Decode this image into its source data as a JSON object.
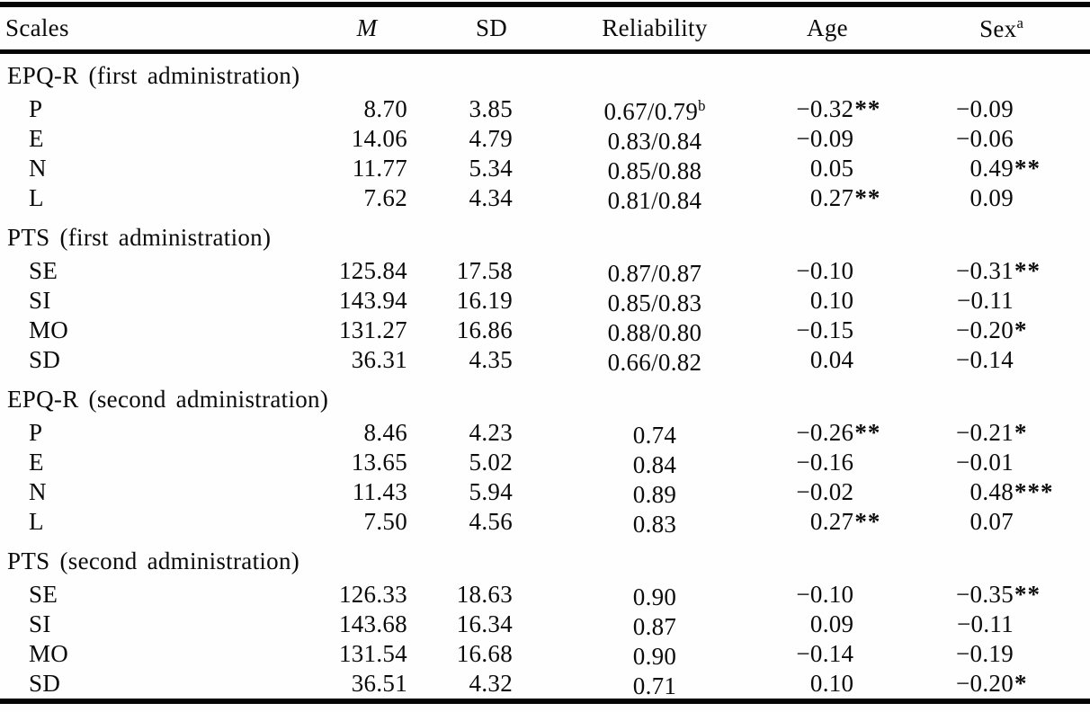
{
  "header": {
    "scales": "Scales",
    "m": "M",
    "sd": "SD",
    "reliability": "Reliability",
    "age": "Age",
    "sex": "Sex",
    "sex_sup": "a"
  },
  "sections": [
    {
      "label": "EPQ-R (first administration)",
      "rows": [
        {
          "scale": "P",
          "m": "8.70",
          "sd": "3.85",
          "rel": "0.67/0.79",
          "rel_sup": "b",
          "age": "−0.32",
          "age_stars": "**",
          "sex": "−0.09",
          "sex_stars": ""
        },
        {
          "scale": "E",
          "m": "14.06",
          "sd": "4.79",
          "rel": "0.83/0.84",
          "rel_sup": "",
          "age": "−0.09",
          "age_stars": "",
          "sex": "−0.06",
          "sex_stars": ""
        },
        {
          "scale": "N",
          "m": "11.77",
          "sd": "5.34",
          "rel": "0.85/0.88",
          "rel_sup": "",
          "age": "0.05",
          "age_stars": "",
          "sex": "0.49",
          "sex_stars": "**"
        },
        {
          "scale": "L",
          "m": "7.62",
          "sd": "4.34",
          "rel": "0.81/0.84",
          "rel_sup": "",
          "age": "0.27",
          "age_stars": "**",
          "sex": "0.09",
          "sex_stars": ""
        }
      ]
    },
    {
      "label": "PTS (first administration)",
      "rows": [
        {
          "scale": "SE",
          "m": "125.84",
          "sd": "17.58",
          "rel": "0.87/0.87",
          "rel_sup": "",
          "age": "−0.10",
          "age_stars": "",
          "sex": "−0.31",
          "sex_stars": "**"
        },
        {
          "scale": "SI",
          "m": "143.94",
          "sd": "16.19",
          "rel": "0.85/0.83",
          "rel_sup": "",
          "age": "0.10",
          "age_stars": "",
          "sex": "−0.11",
          "sex_stars": ""
        },
        {
          "scale": "MO",
          "m": "131.27",
          "sd": "16.86",
          "rel": "0.88/0.80",
          "rel_sup": "",
          "age": "−0.15",
          "age_stars": "",
          "sex": "−0.20",
          "sex_stars": "*"
        },
        {
          "scale": "SD",
          "m": "36.31",
          "sd": "4.35",
          "rel": "0.66/0.82",
          "rel_sup": "",
          "age": "0.04",
          "age_stars": "",
          "sex": "−0.14",
          "sex_stars": ""
        }
      ]
    },
    {
      "label": "EPQ-R (second administration)",
      "rows": [
        {
          "scale": "P",
          "m": "8.46",
          "sd": "4.23",
          "rel": "0.74",
          "rel_sup": "",
          "age": "−0.26",
          "age_stars": "**",
          "sex": "−0.21",
          "sex_stars": "*"
        },
        {
          "scale": "E",
          "m": "13.65",
          "sd": "5.02",
          "rel": "0.84",
          "rel_sup": "",
          "age": "−0.16",
          "age_stars": "",
          "sex": "−0.01",
          "sex_stars": ""
        },
        {
          "scale": "N",
          "m": "11.43",
          "sd": "5.94",
          "rel": "0.89",
          "rel_sup": "",
          "age": "−0.02",
          "age_stars": "",
          "sex": "0.48",
          "sex_stars": "***"
        },
        {
          "scale": "L",
          "m": "7.50",
          "sd": "4.56",
          "rel": "0.83",
          "rel_sup": "",
          "age": "0.27",
          "age_stars": "**",
          "sex": "0.07",
          "sex_stars": ""
        }
      ]
    },
    {
      "label": "PTS (second administration)",
      "rows": [
        {
          "scale": "SE",
          "m": "126.33",
          "sd": "18.63",
          "rel": "0.90",
          "rel_sup": "",
          "age": "−0.10",
          "age_stars": "",
          "sex": "−0.35",
          "sex_stars": "**"
        },
        {
          "scale": "SI",
          "m": "143.68",
          "sd": "16.34",
          "rel": "0.87",
          "rel_sup": "",
          "age": "0.09",
          "age_stars": "",
          "sex": "−0.11",
          "sex_stars": ""
        },
        {
          "scale": "MO",
          "m": "131.54",
          "sd": "16.68",
          "rel": "0.90",
          "rel_sup": "",
          "age": "−0.14",
          "age_stars": "",
          "sex": "−0.19",
          "sex_stars": ""
        },
        {
          "scale": "SD",
          "m": "36.51",
          "sd": "4.32",
          "rel": "0.71",
          "rel_sup": "",
          "age": "0.10",
          "age_stars": "",
          "sex": "−0.20",
          "sex_stars": "*"
        }
      ]
    }
  ]
}
